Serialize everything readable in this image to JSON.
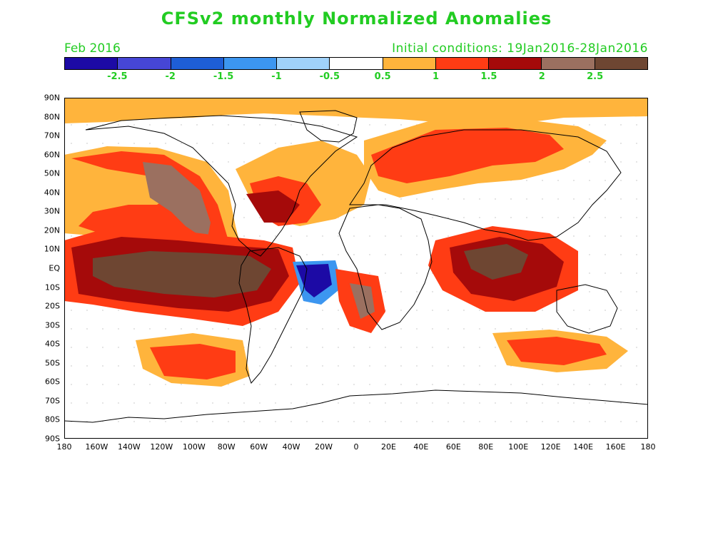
{
  "header": {
    "title": "CFSv2 monthly Normalized Anomalies",
    "month": "Feb 2016",
    "initial_conditions": "Initial conditions: 19Jan2016-28Jan2016"
  },
  "colorbar": {
    "colors": [
      "#1c0aa5",
      "#4646d6",
      "#1e5ed6",
      "#3c96f0",
      "#a0d2fa",
      "#ffffff",
      "#ffb43c",
      "#ff3c14",
      "#a50a0a",
      "#9b7060",
      "#6e4632"
    ],
    "labels": [
      "-2.5",
      "-2",
      "-1.5",
      "-1",
      "-0.5",
      "0.5",
      "1",
      "1.5",
      "2",
      "2.5"
    ]
  },
  "axes": {
    "lat_labels": [
      "90N",
      "80N",
      "70N",
      "60N",
      "50N",
      "40N",
      "30N",
      "20N",
      "10N",
      "EQ",
      "10S",
      "20S",
      "30S",
      "40S",
      "50S",
      "60S",
      "70S",
      "80S",
      "90S"
    ],
    "lon_labels": [
      "180",
      "160W",
      "140W",
      "120W",
      "100W",
      "80W",
      "60W",
      "40W",
      "20W",
      "0",
      "20E",
      "40E",
      "60E",
      "80E",
      "100E",
      "120E",
      "140E",
      "160E",
      "180"
    ]
  },
  "map_layers": {
    "background": "#ffffff",
    "coast": "#000000"
  }
}
